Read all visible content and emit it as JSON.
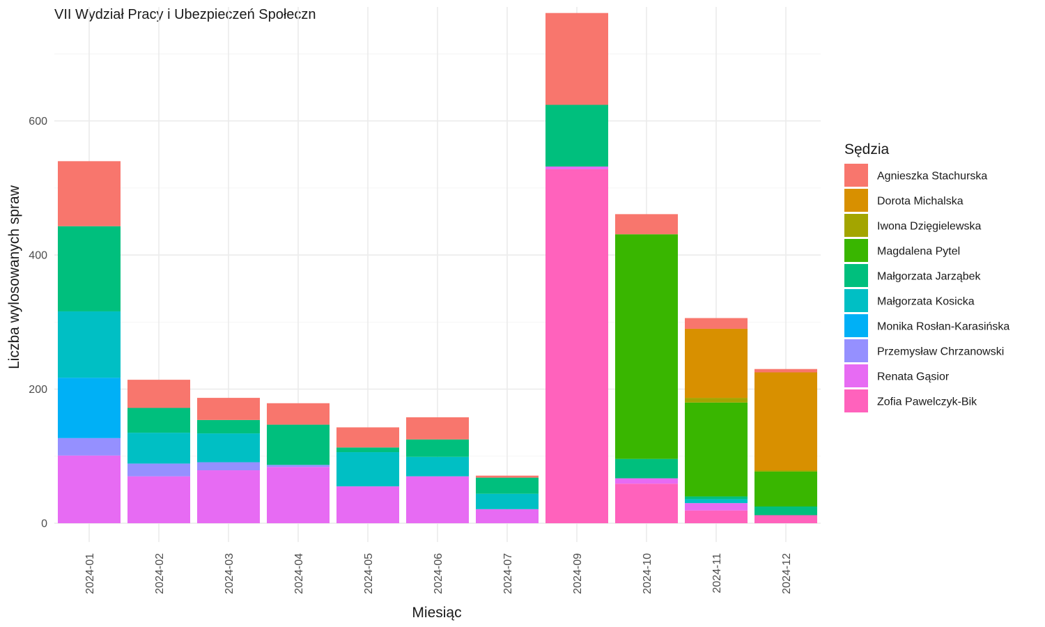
{
  "chart_data": {
    "type": "bar",
    "stacked": true,
    "title": "VII Wydział Pracy i Ubezpieczeń Społeczn",
    "xlabel": "Miesiąc",
    "ylabel": "Liczba wylosowanych spraw",
    "ylim": [
      -28,
      770
    ],
    "yticks": [
      0,
      200,
      400,
      600
    ],
    "grid": true,
    "legend": {
      "title": "Sędzia",
      "position": "right"
    },
    "categories": [
      "2024-01",
      "2024-02",
      "2024-03",
      "2024-04",
      "2024-05",
      "2024-06",
      "2024-07",
      "2024-09",
      "2024-10",
      "2024-11",
      "2024-12"
    ],
    "series": [
      {
        "name": "Agnieszka Stachurska",
        "color": "#F8766D",
        "values": [
          97,
          42,
          33,
          32,
          30,
          33,
          3,
          137,
          30,
          16,
          5
        ]
      },
      {
        "name": "Dorota Michalska",
        "color": "#D89000",
        "values": [
          0,
          0,
          0,
          0,
          0,
          0,
          0,
          0,
          0,
          103,
          146
        ]
      },
      {
        "name": "Iwona Dzięgielewska",
        "color": "#A3A500",
        "values": [
          0,
          0,
          0,
          0,
          0,
          0,
          0,
          0,
          0,
          7,
          2
        ]
      },
      {
        "name": "Magdalena Pytel",
        "color": "#39B600",
        "values": [
          0,
          0,
          0,
          0,
          0,
          0,
          0,
          0,
          335,
          140,
          52
        ]
      },
      {
        "name": "Małgorzata Jarząbek",
        "color": "#00BF7D",
        "values": [
          127,
          37,
          20,
          60,
          7,
          26,
          24,
          92,
          29,
          4,
          13
        ]
      },
      {
        "name": "Małgorzata Kosicka",
        "color": "#00BFC4",
        "values": [
          99,
          46,
          43,
          0,
          51,
          29,
          23,
          0,
          0,
          6,
          0
        ]
      },
      {
        "name": "Monika Rosłan-Karasińska",
        "color": "#00B0F6",
        "values": [
          90,
          0,
          0,
          0,
          0,
          0,
          0,
          0,
          0,
          0,
          0
        ]
      },
      {
        "name": "Przemysław Chrzanowski",
        "color": "#9590FF",
        "values": [
          26,
          19,
          12,
          3,
          0,
          0,
          0,
          0,
          0,
          0,
          0
        ]
      },
      {
        "name": "Renata Gąsior",
        "color": "#E76BF3",
        "values": [
          101,
          70,
          79,
          84,
          55,
          70,
          21,
          4,
          8,
          11,
          0
        ]
      },
      {
        "name": "Zofia Pawelczyk-Bik",
        "color": "#FF62BC",
        "values": [
          0,
          0,
          0,
          0,
          0,
          0,
          0,
          528,
          59,
          19,
          12
        ]
      }
    ]
  }
}
